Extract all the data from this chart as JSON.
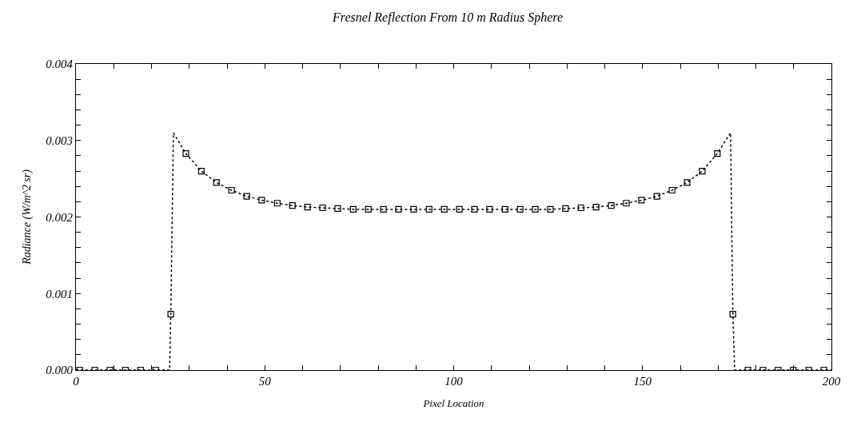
{
  "chart_data": {
    "type": "line",
    "title": "Fresnel Reflection From 10 m Radius Sphere",
    "xlabel": "Pixel Location",
    "ylabel": "Radiance (W/m^2 sr)",
    "xlim": [
      0,
      200
    ],
    "ylim": [
      0,
      0.004
    ],
    "xticks": [
      0,
      {
        "value": 10,
        "label": null
      },
      {
        "value": 20,
        "label": null
      },
      {
        "value": 30,
        "label": null
      },
      {
        "value": 40,
        "label": null
      },
      50,
      {
        "value": 60,
        "label": null
      },
      {
        "value": 70,
        "label": null
      },
      {
        "value": 80,
        "label": null
      },
      {
        "value": 90,
        "label": null
      },
      100,
      {
        "value": 110,
        "label": null
      },
      {
        "value": 120,
        "label": null
      },
      {
        "value": 130,
        "label": null
      },
      {
        "value": 140,
        "label": null
      },
      150,
      {
        "value": 160,
        "label": null
      },
      {
        "value": 170,
        "label": null
      },
      {
        "value": 180,
        "label": null
      },
      {
        "value": 190,
        "label": null
      },
      200
    ],
    "yticks": [
      {
        "value": 0,
        "label": "0.000"
      },
      {
        "value": 0.0002,
        "label": null
      },
      {
        "value": 0.0004,
        "label": null
      },
      {
        "value": 0.0006,
        "label": null
      },
      {
        "value": 0.0008,
        "label": null
      },
      {
        "value": 0.001,
        "label": "0.001"
      },
      {
        "value": 0.0012,
        "label": null
      },
      {
        "value": 0.0014,
        "label": null
      },
      {
        "value": 0.0016,
        "label": null
      },
      {
        "value": 0.0018,
        "label": null
      },
      {
        "value": 0.002,
        "label": "0.002"
      },
      {
        "value": 0.0022,
        "label": null
      },
      {
        "value": 0.0024,
        "label": null
      },
      {
        "value": 0.0026,
        "label": null
      },
      {
        "value": 0.0028,
        "label": null
      },
      {
        "value": 0.003,
        "label": "0.003"
      },
      {
        "value": 0.0032,
        "label": null
      },
      {
        "value": 0.0034,
        "label": null
      },
      {
        "value": 0.0036,
        "label": null
      },
      {
        "value": 0.0038,
        "label": null
      },
      {
        "value": 0.004,
        "label": "0.004"
      }
    ],
    "series": [
      {
        "color": "#000000",
        "marker": "none",
        "line_style": "dotted",
        "x": [
          0,
          24.8,
          25.1,
          25.8,
          29.1,
          33.2,
          37.2,
          41.2,
          45.2,
          49.2,
          53.3,
          57.3,
          61.3,
          65.3,
          69.3,
          73.4,
          77.4,
          81.4,
          85.4,
          89.4,
          93.5,
          97.5,
          101.5,
          105.5,
          109.5,
          113.6,
          117.6,
          121.6,
          125.6,
          129.6,
          133.7,
          137.7,
          141.7,
          145.7,
          149.7,
          153.8,
          157.8,
          161.8,
          165.8,
          169.8,
          173.3,
          173.9,
          174.4,
          200
        ],
        "values": [
          0,
          0,
          0.00073,
          0.0031,
          0.00283,
          0.0026,
          0.00245,
          0.00235,
          0.00227,
          0.00222,
          0.00218,
          0.00215,
          0.00213,
          0.00212,
          0.00211,
          0.0021,
          0.0021,
          0.0021,
          0.0021,
          0.0021,
          0.0021,
          0.0021,
          0.0021,
          0.0021,
          0.0021,
          0.0021,
          0.0021,
          0.0021,
          0.0021,
          0.00211,
          0.00212,
          0.00213,
          0.00215,
          0.00218,
          0.00222,
          0.00227,
          0.00235,
          0.00245,
          0.0026,
          0.00283,
          0.0031,
          0.00073,
          0,
          0
        ]
      },
      {
        "type": "scatter",
        "color": "#000000",
        "marker": "square",
        "x": [
          1.0,
          5.0,
          9.0,
          13.1,
          17.1,
          21.1,
          25.1,
          29.1,
          33.2,
          37.2,
          41.2,
          45.2,
          49.2,
          53.3,
          57.3,
          61.3,
          65.3,
          69.3,
          73.4,
          77.4,
          81.4,
          85.4,
          89.4,
          93.5,
          97.5,
          101.5,
          105.5,
          109.5,
          113.6,
          117.6,
          121.6,
          125.6,
          129.6,
          133.7,
          137.7,
          141.7,
          145.7,
          149.7,
          153.8,
          157.8,
          161.8,
          165.8,
          169.8,
          173.9,
          177.9,
          181.9,
          185.9,
          189.9,
          194.0,
          198.0
        ],
        "values": [
          0,
          0,
          0,
          0,
          0,
          0,
          0.00073,
          0.00283,
          0.0026,
          0.00245,
          0.00235,
          0.00227,
          0.00222,
          0.00218,
          0.00215,
          0.00213,
          0.00212,
          0.00211,
          0.0021,
          0.0021,
          0.0021,
          0.0021,
          0.0021,
          0.0021,
          0.0021,
          0.0021,
          0.0021,
          0.0021,
          0.0021,
          0.0021,
          0.0021,
          0.0021,
          0.00211,
          0.00212,
          0.00213,
          0.00215,
          0.00218,
          0.00222,
          0.00227,
          0.00235,
          0.00245,
          0.0026,
          0.00283,
          0.00073,
          0,
          0,
          0,
          0,
          0,
          0
        ]
      }
    ]
  }
}
